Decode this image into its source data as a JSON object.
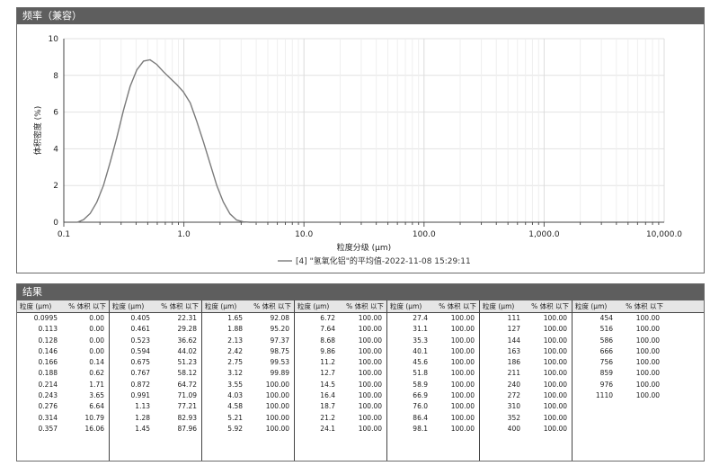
{
  "chart_panel": {
    "title": "频率（兼容）"
  },
  "chart_data": {
    "type": "line",
    "xscale": "log",
    "xlim": [
      0.1,
      10000
    ],
    "ylim": [
      0,
      10
    ],
    "xlabel": "粒度分级 (μm)",
    "ylabel": "体积密度 (%)",
    "x_ticks": [
      0.1,
      1,
      10,
      100,
      1000,
      10000
    ],
    "x_tick_labels": [
      "0.1",
      "1.0",
      "10.0",
      "100.0",
      "1,000.0",
      "10,000.0"
    ],
    "y_ticks": [
      0,
      2,
      4,
      6,
      8,
      10
    ],
    "y_tick_labels": [
      "0",
      "2",
      "4",
      "6",
      "8",
      "10"
    ],
    "grid": true,
    "legend_position": "bottom-center",
    "series": [
      {
        "name": "[4] \"氢氧化铝\"的平均值-2022-11-08 15:29:11",
        "color": "#7a7a7a",
        "x": [
          0.13,
          0.146,
          0.166,
          0.188,
          0.214,
          0.243,
          0.276,
          0.314,
          0.357,
          0.405,
          0.461,
          0.523,
          0.594,
          0.675,
          0.767,
          0.872,
          0.991,
          1.13,
          1.28,
          1.45,
          1.65,
          1.88,
          2.13,
          2.42,
          2.75,
          3.12,
          3.55,
          4.03
        ],
        "y": [
          0.0,
          0.14,
          0.48,
          1.08,
          2.0,
          3.25,
          4.6,
          6.1,
          7.4,
          8.3,
          8.78,
          8.85,
          8.6,
          8.2,
          7.85,
          7.5,
          7.1,
          6.5,
          5.5,
          4.4,
          3.2,
          2.0,
          1.1,
          0.45,
          0.12,
          0.02,
          0.0,
          0.0
        ]
      }
    ]
  },
  "results": {
    "title": "结果",
    "header_size": "粒度 (μm)",
    "header_pct": "% 体积 以下",
    "columns": [
      [
        [
          "0.0995",
          "0.00"
        ],
        [
          "0.113",
          "0.00"
        ],
        [
          "0.128",
          "0.00"
        ],
        [
          "0.146",
          "0.00"
        ],
        [
          "0.166",
          "0.14"
        ],
        [
          "0.188",
          "0.62"
        ],
        [
          "0.214",
          "1.71"
        ],
        [
          "0.243",
          "3.65"
        ],
        [
          "0.276",
          "6.64"
        ],
        [
          "0.314",
          "10.79"
        ],
        [
          "0.357",
          "16.06"
        ]
      ],
      [
        [
          "0.405",
          "22.31"
        ],
        [
          "0.461",
          "29.28"
        ],
        [
          "0.523",
          "36.62"
        ],
        [
          "0.594",
          "44.02"
        ],
        [
          "0.675",
          "51.23"
        ],
        [
          "0.767",
          "58.12"
        ],
        [
          "0.872",
          "64.72"
        ],
        [
          "0.991",
          "71.09"
        ],
        [
          "1.13",
          "77.21"
        ],
        [
          "1.28",
          "82.93"
        ],
        [
          "1.45",
          "87.96"
        ]
      ],
      [
        [
          "1.65",
          "92.08"
        ],
        [
          "1.88",
          "95.20"
        ],
        [
          "2.13",
          "97.37"
        ],
        [
          "2.42",
          "98.75"
        ],
        [
          "2.75",
          "99.53"
        ],
        [
          "3.12",
          "99.89"
        ],
        [
          "3.55",
          "100.00"
        ],
        [
          "4.03",
          "100.00"
        ],
        [
          "4.58",
          "100.00"
        ],
        [
          "5.21",
          "100.00"
        ],
        [
          "5.92",
          "100.00"
        ]
      ],
      [
        [
          "6.72",
          "100.00"
        ],
        [
          "7.64",
          "100.00"
        ],
        [
          "8.68",
          "100.00"
        ],
        [
          "9.86",
          "100.00"
        ],
        [
          "11.2",
          "100.00"
        ],
        [
          "12.7",
          "100.00"
        ],
        [
          "14.5",
          "100.00"
        ],
        [
          "16.4",
          "100.00"
        ],
        [
          "18.7",
          "100.00"
        ],
        [
          "21.2",
          "100.00"
        ],
        [
          "24.1",
          "100.00"
        ]
      ],
      [
        [
          "27.4",
          "100.00"
        ],
        [
          "31.1",
          "100.00"
        ],
        [
          "35.3",
          "100.00"
        ],
        [
          "40.1",
          "100.00"
        ],
        [
          "45.6",
          "100.00"
        ],
        [
          "51.8",
          "100.00"
        ],
        [
          "58.9",
          "100.00"
        ],
        [
          "66.9",
          "100.00"
        ],
        [
          "76.0",
          "100.00"
        ],
        [
          "86.4",
          "100.00"
        ],
        [
          "98.1",
          "100.00"
        ]
      ],
      [
        [
          "111",
          "100.00"
        ],
        [
          "127",
          "100.00"
        ],
        [
          "144",
          "100.00"
        ],
        [
          "163",
          "100.00"
        ],
        [
          "186",
          "100.00"
        ],
        [
          "211",
          "100.00"
        ],
        [
          "240",
          "100.00"
        ],
        [
          "272",
          "100.00"
        ],
        [
          "310",
          "100.00"
        ],
        [
          "352",
          "100.00"
        ],
        [
          "400",
          "100.00"
        ]
      ],
      [
        [
          "454",
          "100.00"
        ],
        [
          "516",
          "100.00"
        ],
        [
          "586",
          "100.00"
        ],
        [
          "666",
          "100.00"
        ],
        [
          "756",
          "100.00"
        ],
        [
          "859",
          "100.00"
        ],
        [
          "976",
          "100.00"
        ],
        [
          "1110",
          "100.00"
        ]
      ]
    ]
  }
}
